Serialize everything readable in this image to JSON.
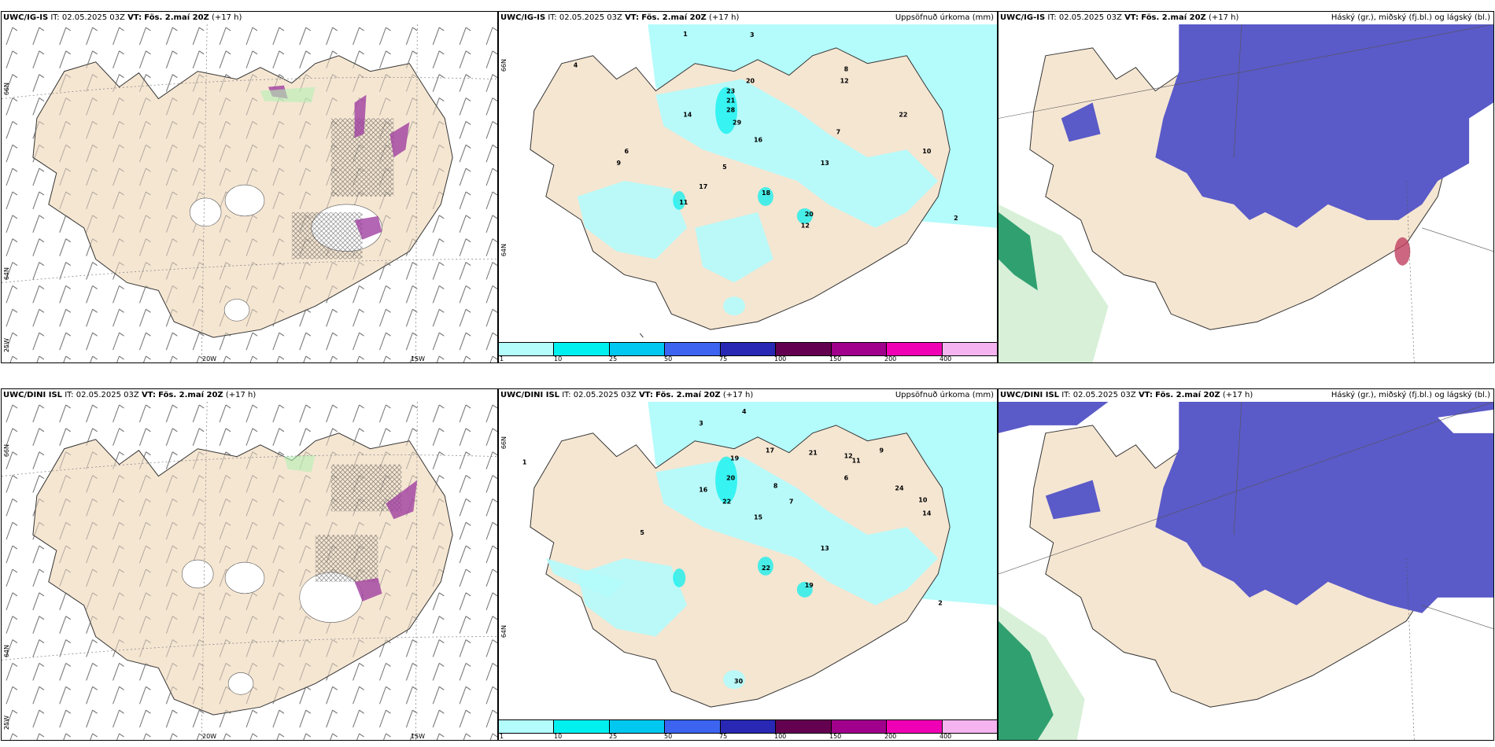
{
  "rows": [
    {
      "model": "UWC/IG-IS",
      "it_label": "IT:",
      "it_value": "02.05.2025 03Z",
      "vt_label": "VT:",
      "vt_value": "Fös. 2.maí 20Z",
      "lead": "(+17 h)"
    },
    {
      "model": "UWC/DINI ISL",
      "it_label": "IT:",
      "it_value": "02.05.2025 03Z",
      "vt_label": "VT:",
      "vt_value": "Fös. 2.maí 20Z",
      "lead": "(+17 h)"
    }
  ],
  "precip_title": "Uppsöfnuð úrkoma (mm)",
  "cloud_title": "Háský (gr.), miðský (fj.bl.) og lágský (bl.)",
  "legend": {
    "colors": [
      "#b4fbfb",
      "#00f0f0",
      "#00c8f0",
      "#3c64f0",
      "#2828b4",
      "#640050",
      "#a0008c",
      "#f000b4",
      "#f5b4f0"
    ],
    "ticks": [
      "1",
      "10",
      "25",
      "50",
      "75",
      "100",
      "150",
      "200",
      "400"
    ]
  },
  "axes": {
    "lat_66": "66N",
    "lat_64": "64N",
    "lon_25": "25W",
    "lon_20": "20W",
    "lon_15": "15W"
  },
  "colors": {
    "land": "#f5e6d2",
    "precip_light": "#b4fbfb",
    "precip_mid": "#00f0f0",
    "cloud_high": "#5a5ac8",
    "cloud_low": "#7dc8a0",
    "cloud_low_dark": "#30a070"
  },
  "precip_values_top": [
    "1",
    "3",
    "4",
    "20",
    "23",
    "21",
    "28",
    "29",
    "14",
    "16",
    "12",
    "22",
    "18",
    "17",
    "11",
    "13",
    "20",
    "12",
    "7",
    "8",
    "9",
    "10",
    "5",
    "6",
    "2"
  ],
  "precip_values_bottom": [
    "1",
    "3",
    "4",
    "19",
    "17",
    "21",
    "12",
    "24",
    "20",
    "22",
    "16",
    "15",
    "22",
    "19",
    "13",
    "11",
    "14",
    "10",
    "8",
    "7",
    "6",
    "5",
    "2",
    "9",
    "30"
  ]
}
